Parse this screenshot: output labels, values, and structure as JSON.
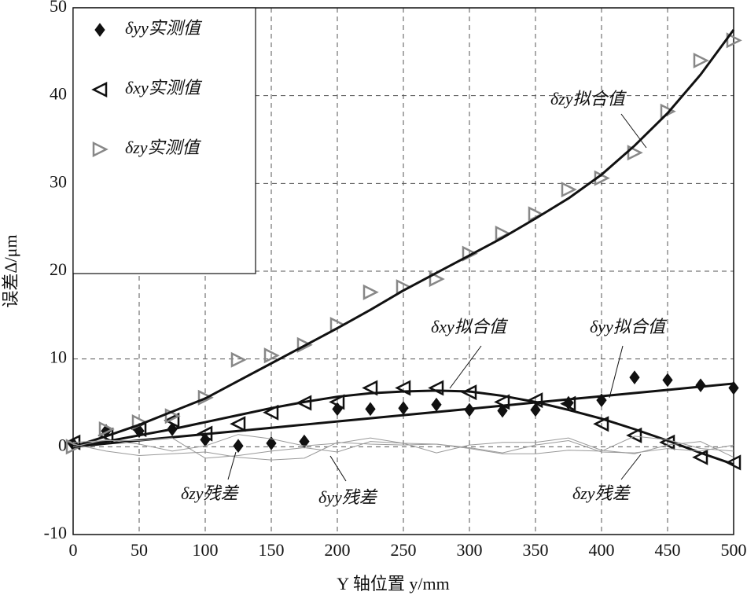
{
  "chart_data": {
    "type": "line",
    "x": [
      0,
      25,
      50,
      75,
      100,
      125,
      150,
      175,
      200,
      225,
      250,
      275,
      300,
      325,
      350,
      375,
      400,
      425,
      450,
      475,
      500
    ],
    "series": [
      {
        "name": "δyy实测值",
        "color": "#111111",
        "marker": "diamond",
        "values": [
          0.3,
          1.8,
          1.8,
          2.0,
          0.8,
          0.1,
          0.4,
          0.6,
          4.3,
          4.3,
          4.4,
          4.8,
          4.2,
          4.1,
          4.2,
          5.0,
          5.3,
          7.9,
          7.6,
          7.0,
          6.7
        ]
      },
      {
        "name": "δxy实测值",
        "color": "#111111",
        "marker": "triangle-left",
        "values": [
          0.5,
          1.3,
          2.0,
          3.0,
          1.5,
          2.6,
          3.9,
          5.0,
          5.1,
          6.7,
          6.7,
          6.7,
          6.2,
          5.1,
          5.3,
          4.9,
          2.6,
          1.3,
          0.5,
          -1.2,
          -1.8
        ]
      },
      {
        "name": "δzy实测值",
        "color": "#888888",
        "marker": "triangle-right",
        "values": [
          0,
          2.0,
          2.8,
          3.5,
          5.6,
          9.9,
          10.4,
          11.6,
          13.9,
          17.6,
          18.2,
          19.1,
          22.0,
          24.3,
          26.5,
          29.3,
          30.6,
          33.5,
          38.2,
          44.0,
          46.3
        ]
      },
      {
        "color": "#111111",
        "line": "thick",
        "values": [
          0,
          1.2,
          2.5,
          4.0,
          5.5,
          7.5,
          9.5,
          11.5,
          13.5,
          15.6,
          17.8,
          19.8,
          21.8,
          23.8,
          26.0,
          28.3,
          31.0,
          34.3,
          38.0,
          42.4,
          47.5
        ]
      },
      {
        "color": "#111111",
        "line": "thick",
        "values": [
          0,
          0.6,
          1.3,
          2.0,
          2.8,
          3.6,
          4.4,
          5.1,
          5.7,
          6.1,
          6.3,
          6.4,
          6.3,
          5.8,
          5.1,
          4.2,
          3.2,
          2.0,
          0.7,
          -0.7,
          -2.0
        ]
      },
      {
        "color": "#111111",
        "line": "thick",
        "values": [
          0,
          0.36,
          0.72,
          1.08,
          1.44,
          1.8,
          2.16,
          2.52,
          2.88,
          3.24,
          3.6,
          3.96,
          4.32,
          4.68,
          5.04,
          5.4,
          5.76,
          6.12,
          6.48,
          6.84,
          7.2
        ]
      },
      {
        "color": "#999999",
        "line": "thin",
        "values": [
          0,
          0.8,
          0.3,
          -0.5,
          0.1,
          1.4,
          0.9,
          0.1,
          0.4,
          1.0,
          0.4,
          -0.7,
          0.2,
          0.5,
          0.5,
          1.0,
          -0.4,
          -0.8,
          0.2,
          0.6,
          -1.2
        ]
      },
      {
        "color": "#999999",
        "line": "thin",
        "values": [
          0.3,
          -0.5,
          -1.0,
          -0.8,
          -0.6,
          -1.2,
          -1.5,
          -1.3,
          0.5,
          0.3,
          0.2,
          0.3,
          -0.2,
          -0.8,
          -0.8,
          -0.4,
          -0.5,
          1.2,
          0.8,
          -0.2,
          -0.5
        ]
      },
      {
        "color": "#999999",
        "line": "thin",
        "values": [
          0.5,
          0.7,
          0.7,
          1.0,
          -1.3,
          -1.0,
          -0.5,
          -0.1,
          -0.6,
          0.6,
          0.4,
          0.3,
          -0.1,
          -0.7,
          0.2,
          0.7,
          -0.6,
          -0.7,
          -0.2,
          -0.5,
          0.2
        ]
      }
    ],
    "xlim": [
      0,
      500
    ],
    "ylim": [
      -10,
      50
    ],
    "xticks": [
      0,
      50,
      100,
      150,
      200,
      250,
      300,
      350,
      400,
      450,
      500
    ],
    "yticks": [
      -10,
      0,
      10,
      20,
      30,
      40,
      50
    ],
    "grid": true,
    "legend": "upper-left",
    "xlabel": "Y 轴位置 y/mm",
    "ylabel": "误差Δ/μm",
    "annotations": [
      "δzy拟合值",
      "δxy拟合值",
      "δyy拟合值",
      "δzy残差",
      "δyy残差",
      "δzy残差"
    ]
  }
}
